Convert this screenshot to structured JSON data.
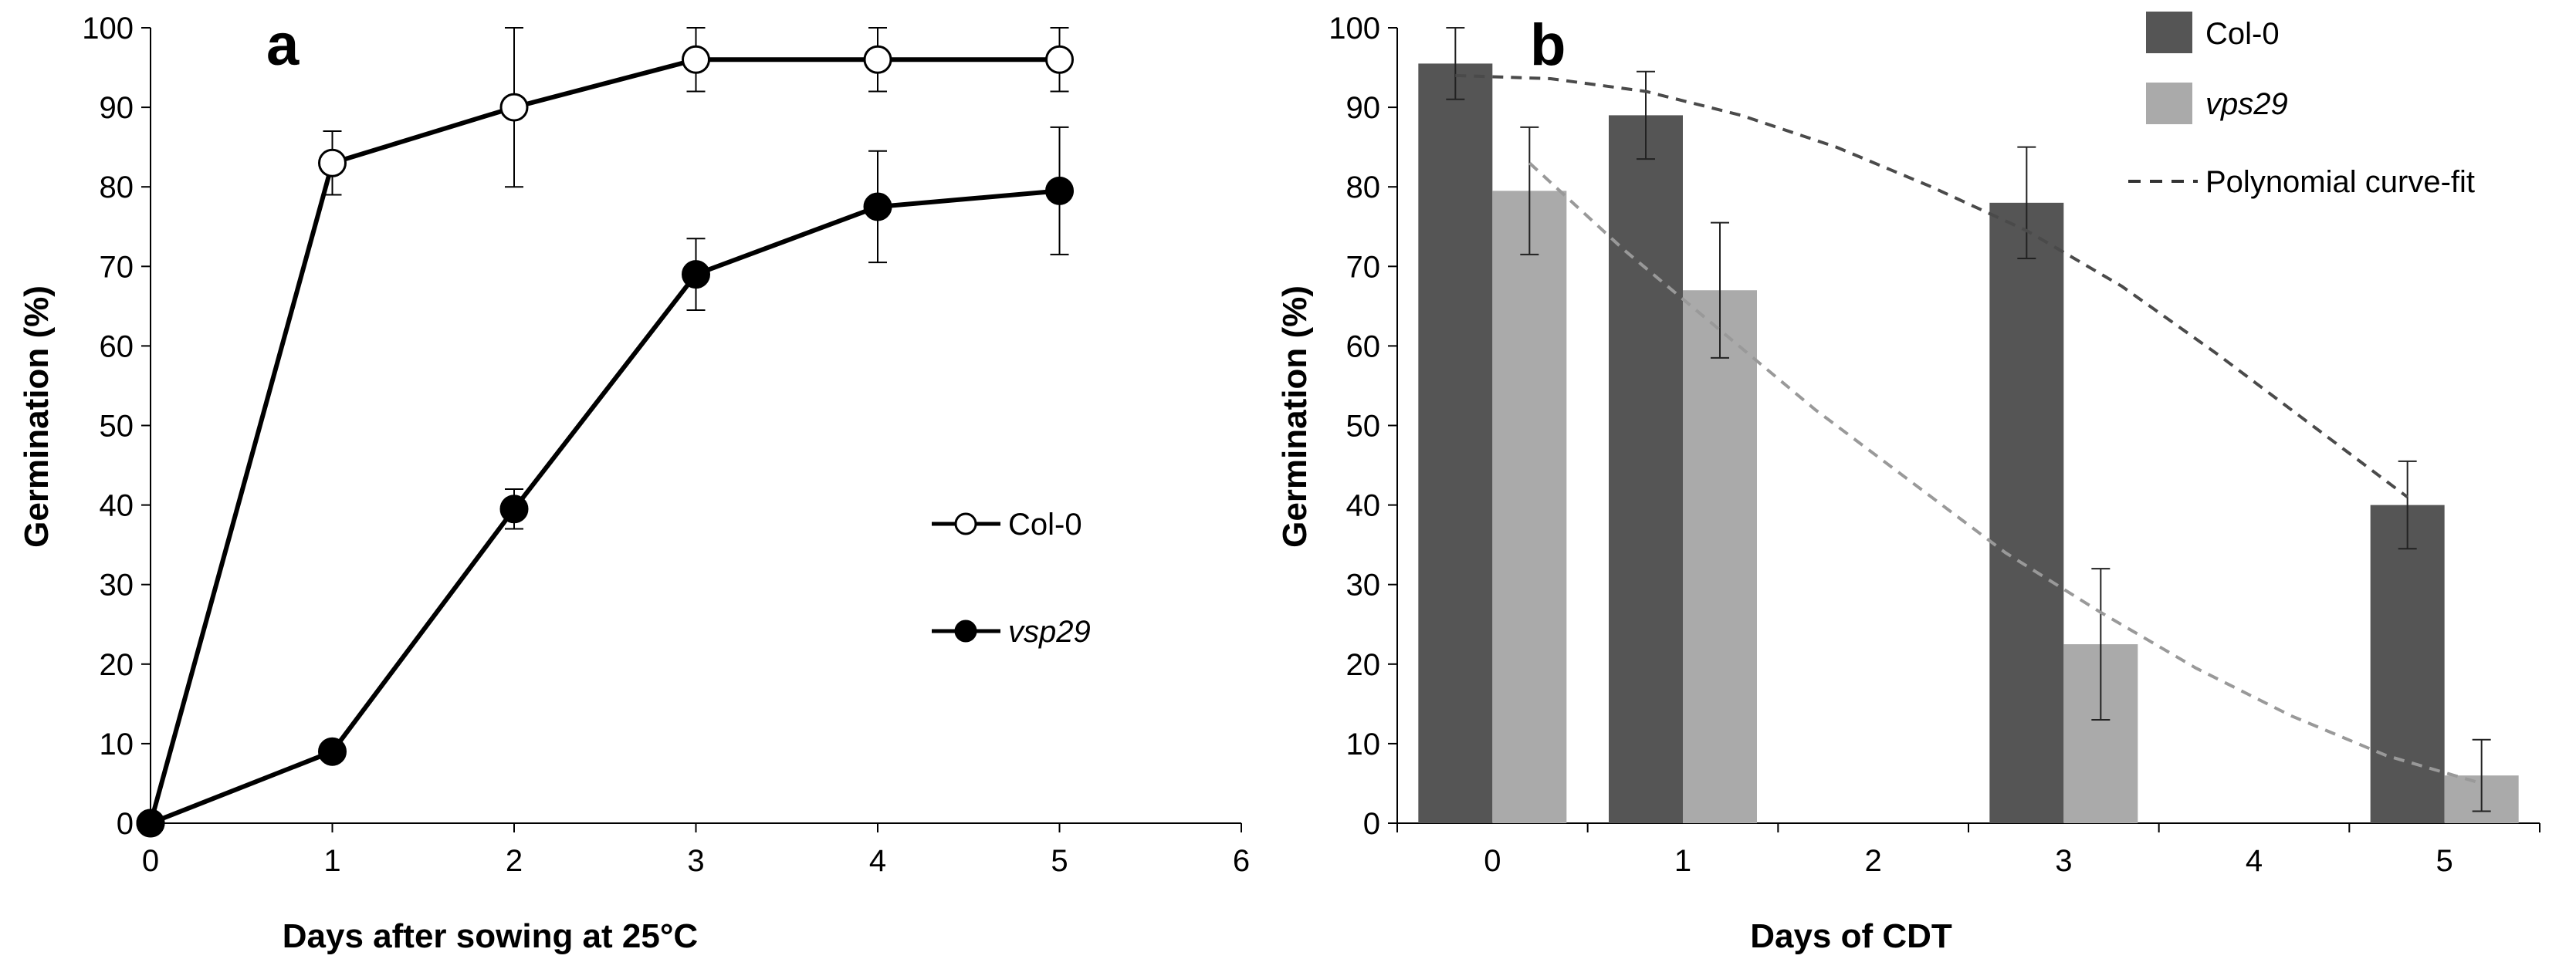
{
  "chart_data": [
    {
      "panel": "a",
      "type": "line",
      "xlabel": "Days after sowing at 25°C",
      "ylabel": "Germination (%)",
      "xlim": [
        0,
        6
      ],
      "ylim": [
        0,
        100
      ],
      "x_ticks": [
        "0",
        "1",
        "2",
        "3",
        "4",
        "5",
        "6"
      ],
      "y_ticks": [
        "0",
        "10",
        "20",
        "30",
        "40",
        "50",
        "60",
        "70",
        "80",
        "90",
        "100"
      ],
      "legend_position": "right-center",
      "series": [
        {
          "name": "Col-0",
          "marker": "open-circle",
          "color": "#000000",
          "fill": "#ffffff",
          "x": [
            0,
            1,
            2,
            3,
            4,
            5
          ],
          "values": [
            0,
            83,
            90,
            96,
            96,
            96
          ],
          "errors": [
            0,
            4,
            10,
            4,
            4,
            4
          ]
        },
        {
          "name": "vsp29",
          "italic": true,
          "marker": "filled-circle",
          "color": "#000000",
          "fill": "#000000",
          "x": [
            0,
            1,
            2,
            3,
            4,
            5
          ],
          "values": [
            0,
            9,
            39.5,
            69,
            77.5,
            79.5
          ],
          "errors": [
            0,
            1,
            2.5,
            4.5,
            7,
            8
          ]
        }
      ]
    },
    {
      "panel": "b",
      "type": "bar",
      "xlabel": "Days of CDT",
      "ylabel": "Germination (%)",
      "ylim": [
        0,
        100
      ],
      "categories": [
        "0",
        "1",
        "2",
        "3",
        "4",
        "5"
      ],
      "y_ticks": [
        "0",
        "10",
        "20",
        "30",
        "40",
        "50",
        "60",
        "70",
        "80",
        "90",
        "100"
      ],
      "legend_position": "top-right",
      "series": [
        {
          "name": "Col-0",
          "color": "#555555",
          "values": [
            95.5,
            89,
            null,
            78,
            null,
            40
          ],
          "errors": [
            4.5,
            5.5,
            null,
            7,
            null,
            5.5
          ]
        },
        {
          "name": "vps29",
          "italic": true,
          "color": "#aaaaaa",
          "values": [
            79.5,
            67,
            null,
            22.5,
            null,
            6
          ],
          "errors": [
            8,
            8.5,
            null,
            9.5,
            null,
            4.5
          ]
        }
      ],
      "fits": [
        {
          "name": "Polynomial curve-fit",
          "color": "#4a4a4a",
          "x": [
            0,
            0.5,
            1,
            1.5,
            2,
            2.5,
            3,
            3.5,
            4,
            4.5,
            5
          ],
          "values": [
            94,
            93.6,
            92,
            89,
            85,
            80,
            74.5,
            67.5,
            59,
            50,
            41
          ]
        },
        {
          "name": "",
          "color": "#999999",
          "x": [
            0,
            0.5,
            1,
            1.5,
            2,
            2.5,
            3,
            3.5,
            4,
            4.5,
            5
          ],
          "values": [
            83,
            72,
            62,
            52,
            43,
            34,
            26.5,
            19.5,
            13.5,
            8.5,
            5
          ]
        }
      ]
    }
  ]
}
